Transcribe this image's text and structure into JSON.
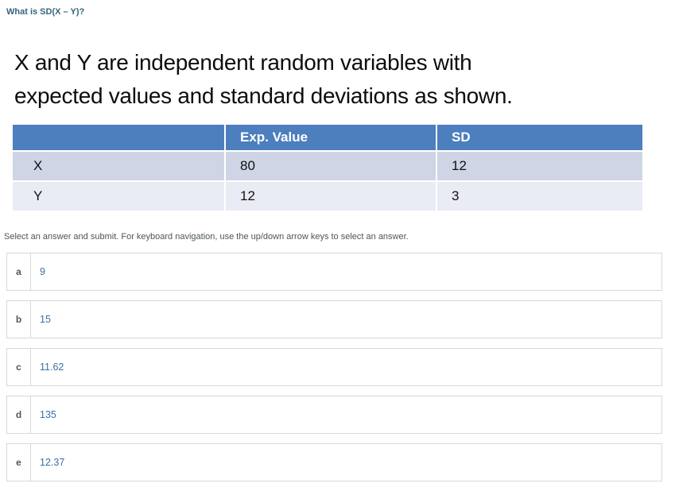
{
  "question": {
    "title": "What is SD(X – Y)?"
  },
  "slide": {
    "heading_lines": [
      "X and Y are independent random variables with",
      "expected values and standard deviations as shown."
    ],
    "table": {
      "headers": [
        "",
        "Exp. Value",
        "SD"
      ],
      "rows": [
        {
          "label": "X",
          "exp_value": "80",
          "sd": "12"
        },
        {
          "label": "Y",
          "exp_value": "12",
          "sd": "3"
        }
      ]
    }
  },
  "instructions": "Select an answer and submit. For keyboard navigation, use the up/down arrow keys to select an answer.",
  "options": [
    {
      "letter": "a",
      "text": "9"
    },
    {
      "letter": "b",
      "text": "15"
    },
    {
      "letter": "c",
      "text": "11.62"
    },
    {
      "letter": "d",
      "text": "135"
    },
    {
      "letter": "e",
      "text": "12.37"
    }
  ],
  "colors": {
    "title_color": "#35647e",
    "heading_color": "#0d0d0d",
    "header_blue": "#4d7ebd",
    "header_text": "#ffffff",
    "row_odd_bg": "#cfd5e4",
    "row_even_bg": "#e9ecf4",
    "instruction_color": "#4d5458",
    "option_border": "#d8d8d8",
    "option_letter_color": "#4b5a66",
    "option_value_color": "#3d6fa5",
    "page_bg": "#ffffff"
  }
}
